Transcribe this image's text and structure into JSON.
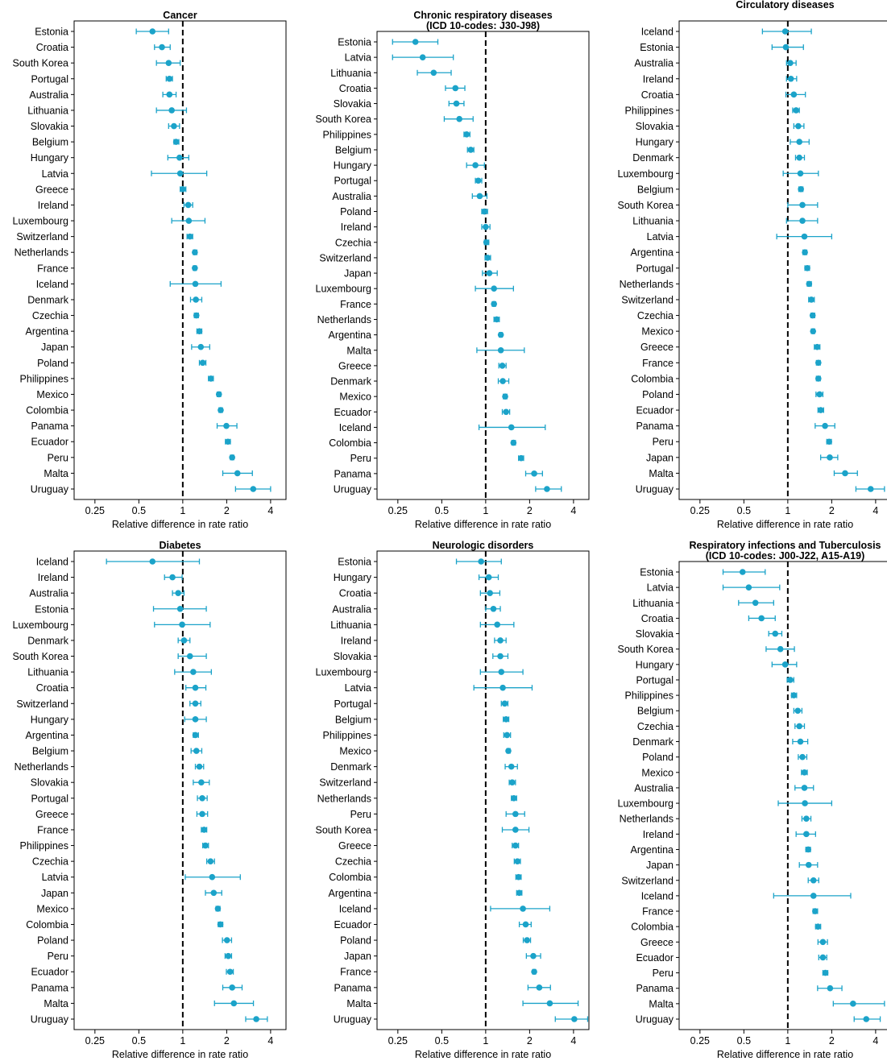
{
  "colors": {
    "marker": "#1ba3c9",
    "errorbar": "#1ba3c9",
    "reference_line": "#000000",
    "axis": "#000000"
  },
  "chart_data": [
    {
      "type": "scatter",
      "title": [
        "Cancer"
      ],
      "xlabel": "Relative difference in rate ratio",
      "x_scale": "log",
      "xlim": [
        0.18,
        5.1
      ],
      "xticks": [
        0.25,
        0.5,
        1,
        2,
        4
      ],
      "xtick_labels": [
        "0.25",
        "0.5",
        "1",
        "2",
        "4"
      ],
      "reference_x": 1,
      "categories": [
        "Estonia",
        "Croatia",
        "South Korea",
        "Portugal",
        "Australia",
        "Lithuania",
        "Slovakia",
        "Belgium",
        "Hungary",
        "Latvia",
        "Greece",
        "Ireland",
        "Luxembourg",
        "Switzerland",
        "Netherlands",
        "France",
        "Iceland",
        "Denmark",
        "Czechia",
        "Argentina",
        "Japan",
        "Poland",
        "Philippines",
        "Mexico",
        "Colombia",
        "Panama",
        "Ecuador",
        "Peru",
        "Malta",
        "Uruguay"
      ],
      "values": [
        0.62,
        0.72,
        0.8,
        0.81,
        0.81,
        0.84,
        0.87,
        0.9,
        0.95,
        0.96,
        1.0,
        1.09,
        1.1,
        1.12,
        1.21,
        1.21,
        1.22,
        1.23,
        1.24,
        1.3,
        1.33,
        1.37,
        1.56,
        1.77,
        1.82,
        1.99,
        2.04,
        2.18,
        2.37,
        3.04
      ],
      "lower": [
        0.48,
        0.64,
        0.66,
        0.77,
        0.73,
        0.66,
        0.8,
        0.87,
        0.79,
        0.61,
        0.96,
        1.02,
        0.84,
        1.07,
        1.18,
        1.18,
        0.82,
        1.13,
        1.2,
        1.25,
        1.15,
        1.3,
        1.5,
        1.72,
        1.77,
        1.72,
        1.96,
        2.12,
        1.88,
        2.3
      ],
      "upper": [
        0.8,
        0.82,
        0.96,
        0.85,
        0.9,
        1.06,
        0.95,
        0.94,
        1.1,
        1.46,
        1.05,
        1.17,
        1.42,
        1.17,
        1.25,
        1.24,
        1.83,
        1.35,
        1.28,
        1.35,
        1.53,
        1.44,
        1.62,
        1.82,
        1.87,
        2.35,
        2.12,
        2.24,
        3.0,
        4.0
      ]
    },
    {
      "type": "scatter",
      "title": [
        "Chronic respiratory diseases",
        "(ICD 10-codes: J30-J98)"
      ],
      "xlabel": "Relative difference in rate ratio",
      "x_scale": "log",
      "xlim": [
        0.18,
        5.1
      ],
      "xticks": [
        0.25,
        0.5,
        1,
        2,
        4
      ],
      "xtick_labels": [
        "0.25",
        "0.5",
        "1",
        "2",
        "4"
      ],
      "reference_x": 1,
      "categories": [
        "Estonia",
        "Latvia",
        "Lithuania",
        "Croatia",
        "Slovakia",
        "South Korea",
        "Philippines",
        "Belgium",
        "Hungary",
        "Portugal",
        "Australia",
        "Poland",
        "Ireland",
        "Czechia",
        "Switzerland",
        "Japan",
        "Luxembourg",
        "France",
        "Netherlands",
        "Argentina",
        "Malta",
        "Greece",
        "Denmark",
        "Mexico",
        "Ecuador",
        "Iceland",
        "Colombia",
        "Peru",
        "Panama",
        "Uruguay"
      ],
      "values": [
        0.33,
        0.37,
        0.44,
        0.62,
        0.63,
        0.66,
        0.74,
        0.79,
        0.85,
        0.89,
        0.91,
        0.98,
        1.0,
        1.01,
        1.03,
        1.06,
        1.14,
        1.14,
        1.19,
        1.27,
        1.27,
        1.3,
        1.31,
        1.36,
        1.38,
        1.5,
        1.55,
        1.75,
        2.15,
        2.63
      ],
      "lower": [
        0.23,
        0.23,
        0.34,
        0.53,
        0.56,
        0.52,
        0.71,
        0.75,
        0.74,
        0.85,
        0.81,
        0.94,
        0.94,
        0.98,
        0.99,
        0.95,
        0.85,
        1.11,
        1.14,
        1.24,
        0.87,
        1.23,
        1.22,
        1.32,
        1.3,
        0.9,
        1.51,
        1.68,
        1.88,
        2.2
      ],
      "upper": [
        0.47,
        0.6,
        0.58,
        0.72,
        0.71,
        0.82,
        0.78,
        0.83,
        0.98,
        0.94,
        1.02,
        1.03,
        1.07,
        1.05,
        1.08,
        1.2,
        1.55,
        1.17,
        1.24,
        1.3,
        1.84,
        1.38,
        1.44,
        1.4,
        1.46,
        2.56,
        1.6,
        1.82,
        2.45,
        3.3
      ]
    },
    {
      "type": "scatter",
      "title": [
        "Circulatory diseases"
      ],
      "xlabel": "Relative difference in rate ratio",
      "x_scale": "log",
      "xlim": [
        0.18,
        5.1
      ],
      "xticks": [
        0.25,
        0.5,
        1,
        2,
        4
      ],
      "xtick_labels": [
        "0.25",
        "0.5",
        "1",
        "2",
        "4"
      ],
      "reference_x": 1,
      "categories": [
        "Iceland",
        "Estonia",
        "Australia",
        "Ireland",
        "Croatia",
        "Philippines",
        "Slovakia",
        "Hungary",
        "Denmark",
        "Luxembourg",
        "Belgium",
        "South Korea",
        "Lithuania",
        "Latvia",
        "Argentina",
        "Portugal",
        "Netherlands",
        "Switzerland",
        "Czechia",
        "Mexico",
        "Greece",
        "France",
        "Colombia",
        "Poland",
        "Ecuador",
        "Panama",
        "Peru",
        "Japan",
        "Malta",
        "Uruguay"
      ],
      "values": [
        0.96,
        0.97,
        1.04,
        1.05,
        1.1,
        1.14,
        1.18,
        1.2,
        1.2,
        1.22,
        1.23,
        1.26,
        1.26,
        1.3,
        1.31,
        1.36,
        1.4,
        1.45,
        1.48,
        1.49,
        1.59,
        1.62,
        1.62,
        1.65,
        1.68,
        1.8,
        1.92,
        1.94,
        2.47,
        3.7
      ],
      "lower": [
        0.67,
        0.78,
        0.98,
        0.98,
        0.97,
        1.08,
        1.1,
        1.04,
        1.13,
        0.93,
        1.19,
        1.0,
        0.98,
        0.84,
        1.27,
        1.31,
        1.36,
        1.39,
        1.44,
        1.45,
        1.52,
        1.57,
        1.57,
        1.56,
        1.61,
        1.54,
        1.85,
        1.68,
        2.08,
        2.93
      ],
      "upper": [
        1.45,
        1.28,
        1.14,
        1.15,
        1.32,
        1.2,
        1.29,
        1.4,
        1.3,
        1.62,
        1.27,
        1.6,
        1.6,
        2.0,
        1.35,
        1.41,
        1.45,
        1.52,
        1.53,
        1.53,
        1.66,
        1.67,
        1.67,
        1.74,
        1.76,
        2.1,
        1.99,
        2.2,
        3.0,
        4.6
      ]
    },
    {
      "type": "scatter",
      "title": [
        "Diabetes"
      ],
      "xlabel": "Relative difference in rate ratio",
      "x_scale": "log",
      "xlim": [
        0.18,
        5.1
      ],
      "xticks": [
        0.25,
        0.5,
        1,
        2,
        4
      ],
      "xtick_labels": [
        "0.25",
        "0.5",
        "1",
        "2",
        "4"
      ],
      "reference_x": 1,
      "categories": [
        "Iceland",
        "Ireland",
        "Australia",
        "Estonia",
        "Luxembourg",
        "Denmark",
        "South Korea",
        "Lithuania",
        "Croatia",
        "Switzerland",
        "Hungary",
        "Argentina",
        "Belgium",
        "Netherlands",
        "Slovakia",
        "Portugal",
        "Greece",
        "France",
        "Philippines",
        "Czechia",
        "Latvia",
        "Japan",
        "Mexico",
        "Colombia",
        "Poland",
        "Peru",
        "Ecuador",
        "Panama",
        "Malta",
        "Uruguay"
      ],
      "values": [
        0.62,
        0.85,
        0.93,
        0.96,
        0.99,
        1.02,
        1.12,
        1.18,
        1.22,
        1.22,
        1.22,
        1.22,
        1.24,
        1.3,
        1.34,
        1.36,
        1.36,
        1.4,
        1.43,
        1.55,
        1.59,
        1.63,
        1.74,
        1.81,
        2.01,
        2.05,
        2.11,
        2.18,
        2.24,
        3.19
      ],
      "lower": [
        0.3,
        0.75,
        0.85,
        0.63,
        0.64,
        0.93,
        0.93,
        0.88,
        1.05,
        1.12,
        1.03,
        1.18,
        1.14,
        1.22,
        1.18,
        1.26,
        1.25,
        1.34,
        1.37,
        1.46,
        1.04,
        1.43,
        1.69,
        1.75,
        1.87,
        1.95,
        1.99,
        1.88,
        1.65,
        2.7
      ],
      "upper": [
        1.3,
        0.99,
        1.02,
        1.45,
        1.54,
        1.12,
        1.45,
        1.57,
        1.44,
        1.33,
        1.45,
        1.28,
        1.35,
        1.39,
        1.52,
        1.47,
        1.48,
        1.46,
        1.5,
        1.65,
        2.48,
        1.85,
        1.8,
        1.88,
        2.16,
        2.16,
        2.22,
        2.55,
        3.05,
        3.8
      ]
    },
    {
      "type": "scatter",
      "title": [
        "Neurologic disorders"
      ],
      "xlabel": "Relative difference in rate ratio",
      "x_scale": "log",
      "xlim": [
        0.18,
        5.1
      ],
      "xticks": [
        0.25,
        0.5,
        1,
        2,
        4
      ],
      "xtick_labels": [
        "0.25",
        "0.5",
        "1",
        "2",
        "4"
      ],
      "reference_x": 1,
      "categories": [
        "Estonia",
        "Hungary",
        "Croatia",
        "Australia",
        "Lithuania",
        "Ireland",
        "Slovakia",
        "Luxembourg",
        "Latvia",
        "Portugal",
        "Belgium",
        "Philippines",
        "Mexico",
        "Denmark",
        "Switzerland",
        "Netherlands",
        "Peru",
        "South Korea",
        "Greece",
        "Czechia",
        "Colombia",
        "Argentina",
        "Iceland",
        "Ecuador",
        "Poland",
        "Japan",
        "France",
        "Panama",
        "Malta",
        "Uruguay"
      ],
      "values": [
        0.93,
        1.05,
        1.07,
        1.13,
        1.2,
        1.26,
        1.26,
        1.28,
        1.31,
        1.35,
        1.38,
        1.4,
        1.43,
        1.5,
        1.52,
        1.56,
        1.6,
        1.6,
        1.6,
        1.65,
        1.68,
        1.7,
        1.8,
        1.88,
        1.92,
        2.12,
        2.15,
        2.33,
        2.75,
        4.05
      ],
      "lower": [
        0.63,
        0.9,
        0.92,
        1.0,
        0.92,
        1.15,
        1.12,
        0.92,
        0.83,
        1.28,
        1.32,
        1.33,
        1.4,
        1.36,
        1.45,
        1.5,
        1.38,
        1.3,
        1.52,
        1.57,
        1.61,
        1.63,
        1.08,
        1.7,
        1.81,
        1.9,
        2.1,
        1.95,
        1.8,
        3.0
      ],
      "upper": [
        1.28,
        1.22,
        1.25,
        1.26,
        1.56,
        1.38,
        1.42,
        1.8,
        2.08,
        1.42,
        1.44,
        1.48,
        1.47,
        1.65,
        1.6,
        1.63,
        1.85,
        1.98,
        1.68,
        1.73,
        1.75,
        1.77,
        2.75,
        2.05,
        2.03,
        2.38,
        2.2,
        2.78,
        4.3,
        5.0
      ]
    },
    {
      "type": "scatter",
      "title": [
        "Respiratory infections and Tuberculosis",
        "(ICD 10-codes: J00-J22, A15-A19)"
      ],
      "xlabel": "Relative difference in rate ratio",
      "x_scale": "log",
      "xlim": [
        0.18,
        5.1
      ],
      "xticks": [
        0.25,
        0.5,
        1,
        2,
        4
      ],
      "xtick_labels": [
        "0.25",
        "0.5",
        "1",
        "2",
        "4"
      ],
      "reference_x": 1,
      "categories": [
        "Estonia",
        "Latvia",
        "Lithuania",
        "Croatia",
        "Slovakia",
        "South Korea",
        "Hungary",
        "Portugal",
        "Philippines",
        "Belgium",
        "Czechia",
        "Denmark",
        "Poland",
        "Mexico",
        "Australia",
        "Luxembourg",
        "Netherlands",
        "Ireland",
        "Argentina",
        "Japan",
        "Switzerland",
        "Iceland",
        "France",
        "Colombia",
        "Greece",
        "Ecuador",
        "Peru",
        "Panama",
        "Malta",
        "Uruguay"
      ],
      "values": [
        0.49,
        0.54,
        0.6,
        0.66,
        0.82,
        0.89,
        0.96,
        1.04,
        1.1,
        1.17,
        1.2,
        1.22,
        1.26,
        1.3,
        1.3,
        1.31,
        1.34,
        1.34,
        1.38,
        1.39,
        1.5,
        1.5,
        1.54,
        1.61,
        1.74,
        1.74,
        1.81,
        1.95,
        2.8,
        3.45
      ],
      "lower": [
        0.36,
        0.36,
        0.46,
        0.54,
        0.74,
        0.71,
        0.78,
        0.99,
        1.06,
        1.1,
        1.12,
        1.08,
        1.18,
        1.24,
        1.12,
        0.86,
        1.25,
        1.14,
        1.33,
        1.2,
        1.38,
        0.8,
        1.49,
        1.55,
        1.61,
        1.63,
        1.74,
        1.6,
        2.05,
        2.85
      ],
      "upper": [
        0.7,
        0.88,
        0.8,
        0.82,
        0.91,
        1.11,
        1.15,
        1.1,
        1.15,
        1.25,
        1.3,
        1.37,
        1.35,
        1.36,
        1.5,
        2.0,
        1.44,
        1.55,
        1.43,
        1.6,
        1.63,
        2.7,
        1.6,
        1.68,
        1.87,
        1.85,
        1.88,
        2.35,
        4.6,
        4.3
      ]
    }
  ]
}
